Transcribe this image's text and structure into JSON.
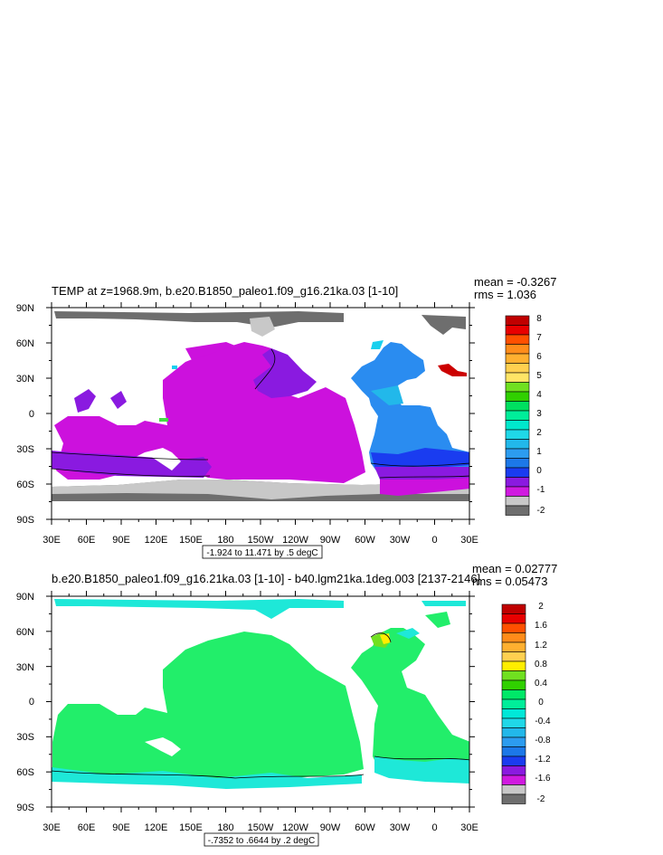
{
  "chart_data": [
    {
      "type": "heatmap",
      "title": "TEMP at z=1968.9m, b.e20.B1850_paleo1.f09_g16.21ka.03 [1-10]",
      "stats": {
        "mean": "mean = -0.3267",
        "rms": "rms = 1.036"
      },
      "x_ticks": [
        "30E",
        "60E",
        "90E",
        "120E",
        "150E",
        "180",
        "150W",
        "120W",
        "90W",
        "60W",
        "30W",
        "0",
        "30E"
      ],
      "y_ticks": [
        "90N",
        "60N",
        "30N",
        "0",
        "30S",
        "60S",
        "90S"
      ],
      "contour_info": "-1.924 to 11.471 by .5 degC",
      "colorbar": {
        "labels": [
          "8",
          "7",
          "6",
          "5",
          "4",
          "3",
          "2",
          "1",
          "0",
          "-1",
          "-2"
        ],
        "colors": [
          "#c00000",
          "#e80000",
          "#ff5000",
          "#ff8c1a",
          "#ffb030",
          "#ffd050",
          "#ffe566",
          "#70e020",
          "#30d000",
          "#00e060",
          "#00ee9a",
          "#00e8cc",
          "#20d8e8",
          "#22b8ea",
          "#2c9cf0",
          "#1c78e8",
          "#1a3cf0",
          "#8a1ae0",
          "#d01ae0",
          "#c8c8c8",
          "#6e6e6e"
        ]
      },
      "colors": {
        "ocean_main": "#cc11dd",
        "southern_band": "#8a1ae0",
        "atlantic": "#2a8cf0",
        "atlantic_deep": "#1a3cf0",
        "atlantic_light": "#22b8ea",
        "ice": "#6e6e6e",
        "ice_light": "#c8c8c8",
        "cyan": "#1ad0ee",
        "red": "#cc0000",
        "green": "#44dd44"
      }
    },
    {
      "type": "heatmap",
      "title": "b.e20.B1850_paleo1.f09_g16.21ka.03 [1-10] - b40.lgm21ka.1deg.003 [2137-2146]",
      "stats": {
        "mean": "mean = 0.02777",
        "rms": "rms = 0.05473"
      },
      "x_ticks": [
        "30E",
        "60E",
        "90E",
        "120E",
        "150E",
        "180",
        "150W",
        "120W",
        "90W",
        "60W",
        "30W",
        "0",
        "30E"
      ],
      "y_ticks": [
        "90N",
        "60N",
        "30N",
        "0",
        "30S",
        "60S",
        "90S"
      ],
      "contour_info": "-.7352 to .6644 by .2 degC",
      "colorbar": {
        "labels": [
          "2",
          "1.6",
          "1.2",
          "0.8",
          "0.4",
          "0",
          "-0.4",
          "-0.8",
          "-1.2",
          "-1.6",
          "-2"
        ],
        "colors": [
          "#c00000",
          "#e80000",
          "#ff5000",
          "#ff8c1a",
          "#ffb030",
          "#ffd050",
          "#ffee00",
          "#70e020",
          "#30d000",
          "#00e868",
          "#00ee9a",
          "#00e8d8",
          "#20d8e8",
          "#22b8ea",
          "#2c9cf0",
          "#1c78e8",
          "#1a3cf0",
          "#8a1ae0",
          "#d01ae0",
          "#c8c8c8",
          "#6e6e6e"
        ]
      },
      "colors": {
        "ocean_main": "#22ee6a",
        "cyan": "#1ee8d8",
        "yellow": "#ffee00",
        "green": "#70e020"
      }
    }
  ]
}
